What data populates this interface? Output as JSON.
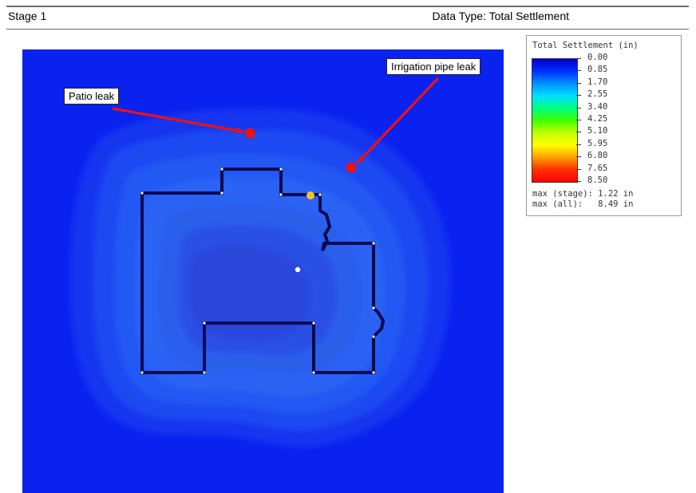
{
  "header": {
    "stage_label": "Stage 1",
    "data_type_label": "Data Type: Total Settlement"
  },
  "plot": {
    "background_color": "#0a22f0",
    "callouts": {
      "patio": "Patio leak",
      "irrigation": "Irrigation pipe leak"
    },
    "leak_marker_color": "#ee1111",
    "query_point_color": "#ffc21a"
  },
  "legend": {
    "title": "Total Settlement (in)",
    "ticks": [
      "0.00",
      "0.85",
      "1.70",
      "2.55",
      "3.40",
      "4.25",
      "5.10",
      "5.95",
      "6.80",
      "7.65",
      "8.50"
    ],
    "max_stage": "max (stage): 1.22 in",
    "max_all": "max (all):   8.49 in",
    "colors": [
      "#0000cc",
      "#0030ff",
      "#0090ff",
      "#00e0ff",
      "#00ff80",
      "#40ff00",
      "#c0ff00",
      "#ffff00",
      "#ffa000",
      "#ff3000",
      "#ff0000"
    ]
  }
}
